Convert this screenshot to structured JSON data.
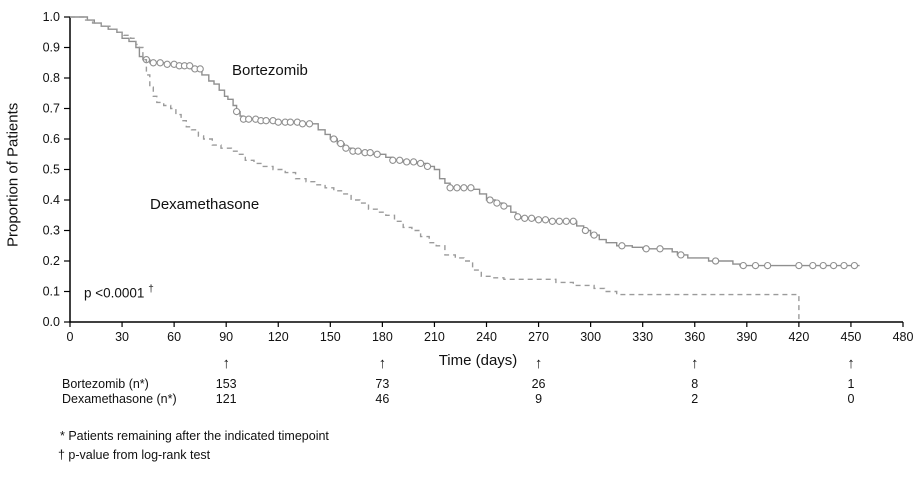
{
  "chart_data": {
    "type": "line",
    "subtype": "kaplan-meier-step",
    "title": "",
    "xlabel": "Time (days)",
    "ylabel": "Proportion of Patients",
    "xlim": [
      0,
      480
    ],
    "ylim": [
      0.0,
      1.0
    ],
    "x_ticks": [
      0,
      30,
      60,
      90,
      120,
      150,
      180,
      210,
      240,
      270,
      300,
      330,
      360,
      390,
      420,
      450,
      480
    ],
    "y_ticks": [
      0.0,
      0.1,
      0.2,
      0.3,
      0.4,
      0.5,
      0.6,
      0.7,
      0.8,
      0.9,
      1.0
    ],
    "grid": false,
    "legend_position": "inline-labels",
    "arrow_glyph": "↑",
    "annotations": {
      "pvalue_text": "p <0.0001",
      "dagger": "†"
    },
    "series": [
      {
        "name": "Bortezomib",
        "style": "solid",
        "marker": "circle",
        "color": "#8f8f8f",
        "steps": [
          [
            0,
            1.0
          ],
          [
            10,
            0.99
          ],
          [
            14,
            0.98
          ],
          [
            18,
            0.97
          ],
          [
            22,
            0.96
          ],
          [
            27,
            0.95
          ],
          [
            30,
            0.93
          ],
          [
            34,
            0.92
          ],
          [
            38,
            0.9
          ],
          [
            40,
            0.87
          ],
          [
            42,
            0.86
          ],
          [
            46,
            0.85
          ],
          [
            55,
            0.845
          ],
          [
            62,
            0.84
          ],
          [
            70,
            0.83
          ],
          [
            76,
            0.81
          ],
          [
            80,
            0.79
          ],
          [
            83,
            0.78
          ],
          [
            86,
            0.76
          ],
          [
            89,
            0.74
          ],
          [
            91,
            0.73
          ],
          [
            94,
            0.71
          ],
          [
            96,
            0.69
          ],
          [
            98,
            0.675
          ],
          [
            100,
            0.665
          ],
          [
            108,
            0.66
          ],
          [
            120,
            0.655
          ],
          [
            132,
            0.65
          ],
          [
            143,
            0.63
          ],
          [
            147,
            0.615
          ],
          [
            150,
            0.6
          ],
          [
            154,
            0.585
          ],
          [
            158,
            0.57
          ],
          [
            163,
            0.56
          ],
          [
            168,
            0.555
          ],
          [
            174,
            0.55
          ],
          [
            182,
            0.54
          ],
          [
            186,
            0.53
          ],
          [
            192,
            0.525
          ],
          [
            200,
            0.52
          ],
          [
            206,
            0.51
          ],
          [
            210,
            0.5
          ],
          [
            213,
            0.47
          ],
          [
            216,
            0.455
          ],
          [
            219,
            0.44
          ],
          [
            232,
            0.435
          ],
          [
            236,
            0.42
          ],
          [
            240,
            0.4
          ],
          [
            245,
            0.39
          ],
          [
            250,
            0.38
          ],
          [
            254,
            0.36
          ],
          [
            257,
            0.345
          ],
          [
            260,
            0.34
          ],
          [
            268,
            0.335
          ],
          [
            278,
            0.33
          ],
          [
            292,
            0.315
          ],
          [
            296,
            0.3
          ],
          [
            300,
            0.285
          ],
          [
            305,
            0.27
          ],
          [
            309,
            0.26
          ],
          [
            315,
            0.25
          ],
          [
            324,
            0.245
          ],
          [
            330,
            0.24
          ],
          [
            347,
            0.23
          ],
          [
            350,
            0.22
          ],
          [
            356,
            0.21
          ],
          [
            368,
            0.2
          ],
          [
            382,
            0.19
          ],
          [
            386,
            0.185
          ],
          [
            455,
            0.185
          ]
        ],
        "censor_x": [
          44,
          48,
          52,
          56,
          60,
          63,
          66,
          69,
          72,
          75,
          96,
          100,
          103,
          107,
          110,
          113,
          117,
          120,
          124,
          127,
          131,
          134,
          138,
          152,
          156,
          159,
          163,
          166,
          170,
          173,
          177,
          186,
          190,
          194,
          198,
          202,
          206,
          219,
          223,
          227,
          231,
          242,
          246,
          250,
          258,
          262,
          266,
          270,
          274,
          278,
          282,
          286,
          290,
          297,
          302,
          318,
          332,
          340,
          352,
          372,
          388,
          395,
          402,
          420,
          428,
          434,
          440,
          446,
          452
        ]
      },
      {
        "name": "Dexamethasone",
        "style": "dashed",
        "marker": "none",
        "color": "#9b9b9b",
        "steps": [
          [
            0,
            1.0
          ],
          [
            8,
            0.99
          ],
          [
            13,
            0.98
          ],
          [
            18,
            0.97
          ],
          [
            23,
            0.96
          ],
          [
            27,
            0.95
          ],
          [
            31,
            0.94
          ],
          [
            35,
            0.93
          ],
          [
            38,
            0.91
          ],
          [
            40,
            0.9
          ],
          [
            42,
            0.86
          ],
          [
            44,
            0.81
          ],
          [
            46,
            0.77
          ],
          [
            48,
            0.74
          ],
          [
            50,
            0.72
          ],
          [
            54,
            0.71
          ],
          [
            58,
            0.7
          ],
          [
            61,
            0.68
          ],
          [
            64,
            0.66
          ],
          [
            67,
            0.64
          ],
          [
            70,
            0.63
          ],
          [
            74,
            0.61
          ],
          [
            77,
            0.6
          ],
          [
            82,
            0.58
          ],
          [
            87,
            0.57
          ],
          [
            93,
            0.56
          ],
          [
            97,
            0.55
          ],
          [
            101,
            0.53
          ],
          [
            106,
            0.52
          ],
          [
            111,
            0.51
          ],
          [
            117,
            0.5
          ],
          [
            124,
            0.49
          ],
          [
            130,
            0.47
          ],
          [
            136,
            0.46
          ],
          [
            141,
            0.45
          ],
          [
            147,
            0.44
          ],
          [
            152,
            0.43
          ],
          [
            157,
            0.42
          ],
          [
            162,
            0.4
          ],
          [
            167,
            0.39
          ],
          [
            172,
            0.37
          ],
          [
            177,
            0.36
          ],
          [
            182,
            0.35
          ],
          [
            187,
            0.33
          ],
          [
            192,
            0.31
          ],
          [
            197,
            0.3
          ],
          [
            202,
            0.28
          ],
          [
            207,
            0.26
          ],
          [
            211,
            0.25
          ],
          [
            216,
            0.22
          ],
          [
            222,
            0.21
          ],
          [
            227,
            0.2
          ],
          [
            232,
            0.17
          ],
          [
            237,
            0.15
          ],
          [
            243,
            0.145
          ],
          [
            250,
            0.14
          ],
          [
            280,
            0.13
          ],
          [
            290,
            0.12
          ],
          [
            302,
            0.11
          ],
          [
            308,
            0.1
          ],
          [
            315,
            0.09
          ],
          [
            420,
            0.0
          ]
        ],
        "censor_x": []
      }
    ],
    "at_risk": {
      "timepoints": [
        90,
        180,
        270,
        360,
        450
      ],
      "rows": [
        {
          "label": "Bortezomib (n*)",
          "values": [
            153,
            73,
            26,
            8,
            1
          ]
        },
        {
          "label": "Dexamethasone (n*)",
          "values": [
            121,
            46,
            9,
            2,
            0
          ]
        }
      ]
    },
    "footnotes": [
      "* Patients remaining after the indicated timepoint",
      "† p-value from log-rank test"
    ]
  }
}
